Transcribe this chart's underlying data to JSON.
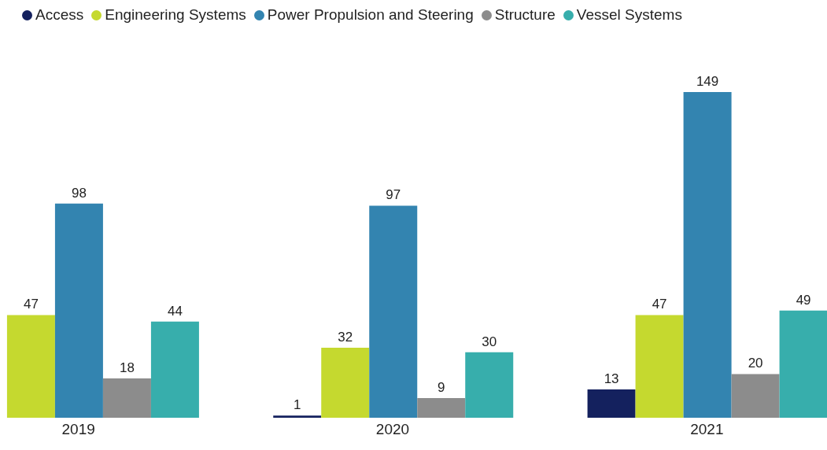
{
  "chart_data": {
    "type": "bar",
    "categories": [
      "2019",
      "2020",
      "2021"
    ],
    "series": [
      {
        "name": "Access",
        "color": "#14215e",
        "values": [
          null,
          1,
          13
        ]
      },
      {
        "name": "Engineering Systems",
        "color": "#c5d92f",
        "values": [
          47,
          32,
          47
        ]
      },
      {
        "name": "Power Propulsion and Steering",
        "color": "#3384b0",
        "values": [
          98,
          97,
          149
        ]
      },
      {
        "name": "Structure",
        "color": "#8c8c8c",
        "values": [
          18,
          9,
          20
        ]
      },
      {
        "name": "Vessel Systems",
        "color": "#37aeac",
        "values": [
          44,
          30,
          49
        ]
      }
    ],
    "tick_labels": "x",
    "data_labels": true,
    "legend": "top left",
    "grid": false
  }
}
